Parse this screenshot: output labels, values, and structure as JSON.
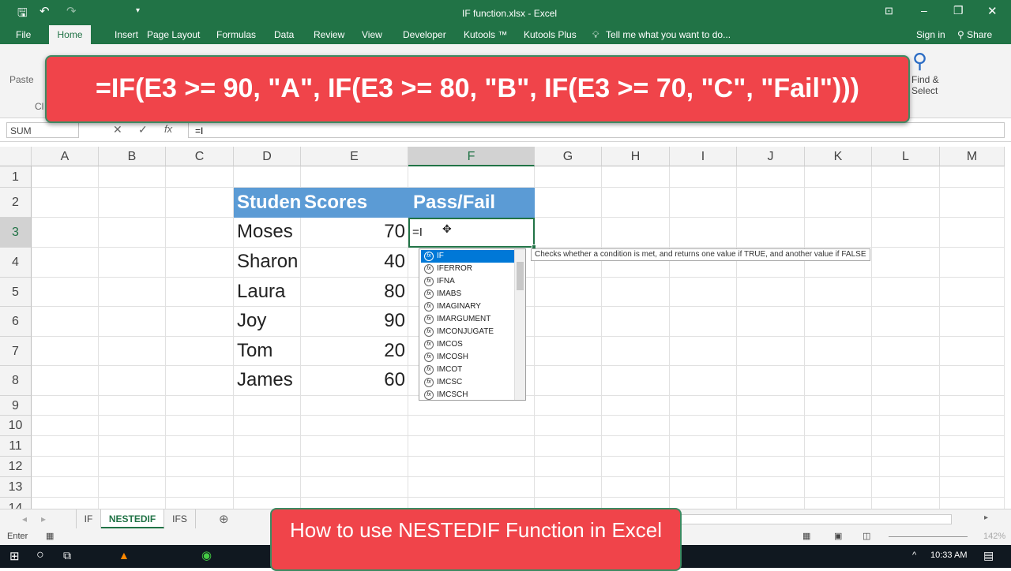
{
  "window": {
    "title": "IF function.xlsx - Excel"
  },
  "menu": {
    "tabs": [
      "File",
      "Home",
      "Insert",
      "Page Layout",
      "Formulas",
      "Data",
      "Review",
      "View",
      "Developer",
      "Kutools ™",
      "Kutools Plus"
    ],
    "tell_me": "Tell me what you want to do...",
    "sign_in": "Sign in",
    "share": "Share"
  },
  "ribbon": {
    "paste": "Paste",
    "find_select": "Find & Select",
    "clipboard": "Cl"
  },
  "formula_bar": {
    "name_box": "SUM",
    "value": "=I"
  },
  "overlay": {
    "formula": "=IF(E3 >= 90, \"A\", IF(E3 >= 80, \"B\", IF(E3 >= 70, \"C\", \"Fail\")))",
    "caption": "How to use NESTEDIF Function in Excel"
  },
  "grid": {
    "columns": [
      "A",
      "B",
      "C",
      "D",
      "E",
      "F",
      "G",
      "H",
      "I",
      "J",
      "K",
      "L",
      "M"
    ],
    "rows": [
      "1",
      "2",
      "3",
      "4",
      "5",
      "6",
      "7",
      "8",
      "9",
      "10",
      "11",
      "12",
      "13",
      "14"
    ],
    "headers": {
      "D": "Studen",
      "E": "Scores",
      "F": "Pass/Fail"
    },
    "students": [
      {
        "name": "Moses",
        "score": "70"
      },
      {
        "name": "Sharon",
        "score": "40"
      },
      {
        "name": "Laura",
        "score": "80"
      },
      {
        "name": "Joy",
        "score": "90"
      },
      {
        "name": "Tom",
        "score": "20"
      },
      {
        "name": "James",
        "score": "60"
      }
    ],
    "active_cell_input": "=I"
  },
  "autocomplete": {
    "items": [
      "IF",
      "IFERROR",
      "IFNA",
      "IMABS",
      "IMAGINARY",
      "IMARGUMENT",
      "IMCONJUGATE",
      "IMCOS",
      "IMCOSH",
      "IMCOT",
      "IMCSC",
      "IMCSCH"
    ],
    "selected": "IF",
    "tooltip": "Checks whether a condition is met, and returns one value if TRUE, and another value if FALSE"
  },
  "sheets": {
    "tabs": [
      "IF",
      "NESTEDIF",
      "IFS"
    ],
    "active": "NESTEDIF"
  },
  "status": {
    "mode": "Enter",
    "zoom": "142%"
  },
  "taskbar": {
    "time": "10:33 AM"
  },
  "colors": {
    "excel_green": "#217346",
    "header_fill": "#5b9bd5",
    "overlay_red": "#f0444a",
    "selection": "#0078d7"
  }
}
